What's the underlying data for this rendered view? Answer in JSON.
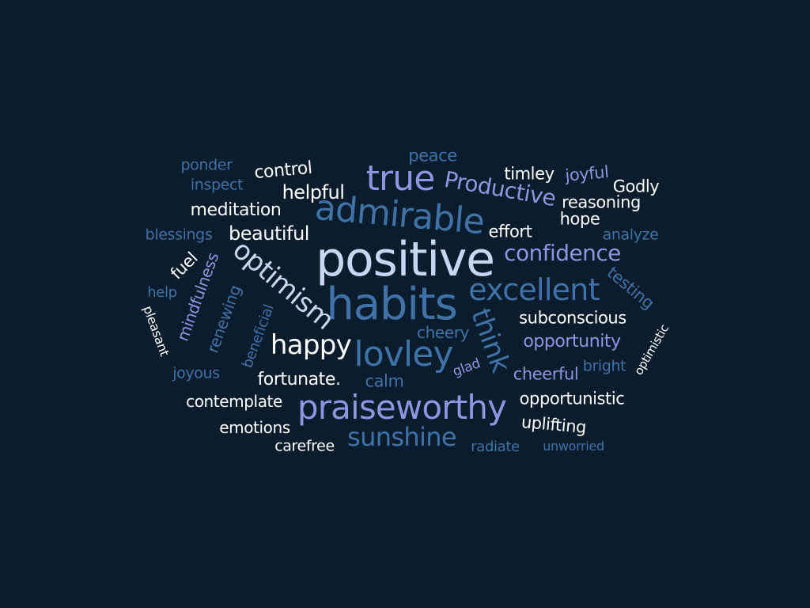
{
  "colors": {
    "background": "#0b1c2c",
    "white": "#ffffff",
    "light_blue": "#c9d6f2",
    "periwinkle": "#8f95e0",
    "blue": "#3f73a8",
    "dark_blue": "#35619a"
  },
  "words": [
    {
      "text": "positive",
      "color": "light_blue"
    },
    {
      "text": "habits",
      "color": "blue"
    },
    {
      "text": "praiseworthy",
      "color": "periwinkle"
    },
    {
      "text": "admirable",
      "color": "blue"
    },
    {
      "text": "true",
      "color": "periwinkle"
    },
    {
      "text": "lovley",
      "color": "blue"
    },
    {
      "text": "excellent",
      "color": "blue"
    },
    {
      "text": "optimism",
      "color": "light_blue"
    },
    {
      "text": "happy",
      "color": "white"
    },
    {
      "text": "sunshine",
      "color": "blue"
    },
    {
      "text": "confidence",
      "color": "periwinkle"
    },
    {
      "text": "think",
      "color": "blue"
    },
    {
      "text": "Productive",
      "color": "periwinkle"
    },
    {
      "text": "beautiful",
      "color": "white"
    },
    {
      "text": "helpful",
      "color": "white"
    },
    {
      "text": "meditation",
      "color": "white"
    },
    {
      "text": "control",
      "color": "white"
    },
    {
      "text": "ponder",
      "color": "blue"
    },
    {
      "text": "inspect",
      "color": "blue"
    },
    {
      "text": "blessings",
      "color": "blue"
    },
    {
      "text": "peace",
      "color": "blue"
    },
    {
      "text": "timley",
      "color": "white"
    },
    {
      "text": "joyful",
      "color": "periwinkle"
    },
    {
      "text": "Godly",
      "color": "white"
    },
    {
      "text": "reasoning",
      "color": "white"
    },
    {
      "text": "hope",
      "color": "white"
    },
    {
      "text": "effort",
      "color": "white"
    },
    {
      "text": "analyze",
      "color": "blue"
    },
    {
      "text": "testing",
      "color": "blue"
    },
    {
      "text": "subconscious",
      "color": "white"
    },
    {
      "text": "opportunity",
      "color": "periwinkle"
    },
    {
      "text": "optimistic",
      "color": "white"
    },
    {
      "text": "bright",
      "color": "blue"
    },
    {
      "text": "cheerful",
      "color": "periwinkle"
    },
    {
      "text": "opportunistic",
      "color": "white"
    },
    {
      "text": "uplifting",
      "color": "white"
    },
    {
      "text": "unworried",
      "color": "blue"
    },
    {
      "text": "radiate",
      "color": "blue"
    },
    {
      "text": "glad",
      "color": "periwinkle"
    },
    {
      "text": "cheery",
      "color": "blue"
    },
    {
      "text": "calm",
      "color": "blue"
    },
    {
      "text": "fortunate.",
      "color": "white"
    },
    {
      "text": "carefree",
      "color": "white"
    },
    {
      "text": "emotions",
      "color": "white"
    },
    {
      "text": "contemplate",
      "color": "white"
    },
    {
      "text": "joyous",
      "color": "blue"
    },
    {
      "text": "beneficial",
      "color": "blue"
    },
    {
      "text": "renewing",
      "color": "blue"
    },
    {
      "text": "mindfulness",
      "color": "periwinkle"
    },
    {
      "text": "fuel",
      "color": "white"
    },
    {
      "text": "help",
      "color": "blue"
    },
    {
      "text": "pleasant",
      "color": "white"
    }
  ]
}
